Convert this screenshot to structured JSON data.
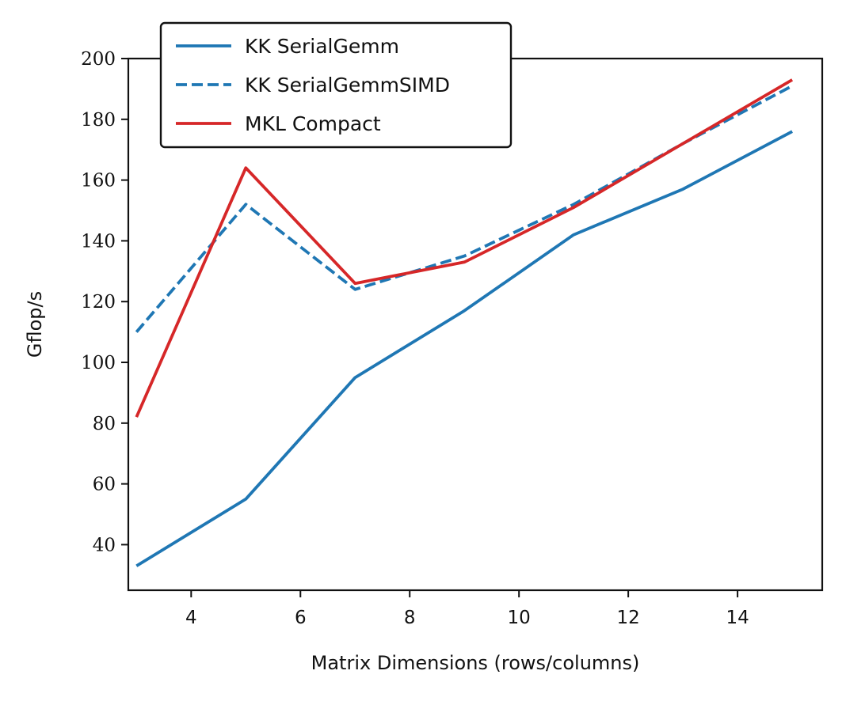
{
  "chart_data": {
    "type": "line",
    "xlabel": "Matrix Dimensions (rows/columns)",
    "ylabel": "Gflop/s",
    "xlim": [
      2.85,
      15.55
    ],
    "ylim": [
      25,
      200
    ],
    "xticks": [
      4,
      6,
      8,
      10,
      12,
      14
    ],
    "yticks": [
      40,
      60,
      80,
      100,
      120,
      140,
      160,
      180,
      200
    ],
    "grid": false,
    "legend_position": "top-left",
    "x": [
      3,
      5,
      7,
      9,
      11,
      13,
      15
    ],
    "series": [
      {
        "name": "KK SerialGemm",
        "color": "#1f77b4",
        "dash": "solid",
        "values": [
          33,
          55,
          95,
          117,
          142,
          157,
          176
        ]
      },
      {
        "name": "KK SerialGemmSIMD",
        "color": "#1f77b4",
        "dash": "dashed",
        "values": [
          110,
          152,
          124,
          135,
          152,
          172,
          191
        ]
      },
      {
        "name": "MKL Compact",
        "color": "#d62728",
        "dash": "solid",
        "values": [
          82,
          164,
          126,
          133,
          151,
          172,
          193
        ]
      }
    ]
  }
}
